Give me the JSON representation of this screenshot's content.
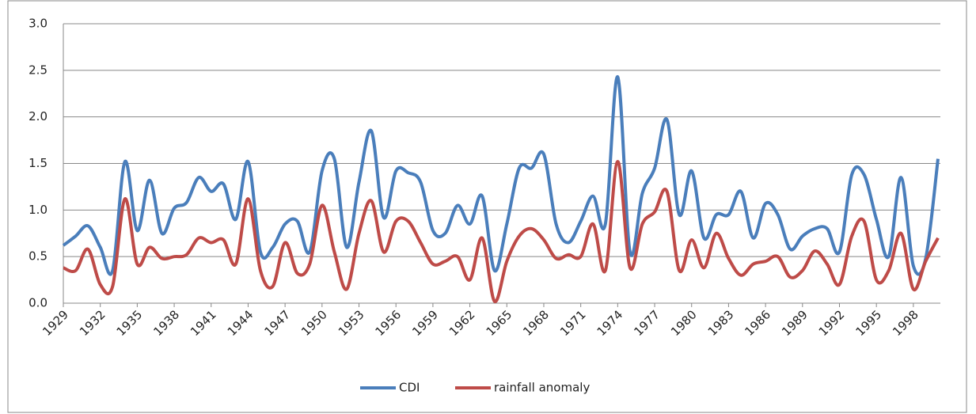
{
  "chart_data": {
    "type": "line",
    "x": [
      1929,
      1930,
      1931,
      1932,
      1933,
      1934,
      1935,
      1936,
      1937,
      1938,
      1939,
      1940,
      1941,
      1942,
      1943,
      1944,
      1945,
      1946,
      1947,
      1948,
      1949,
      1950,
      1951,
      1952,
      1953,
      1954,
      1955,
      1956,
      1957,
      1958,
      1959,
      1960,
      1961,
      1962,
      1963,
      1964,
      1965,
      1966,
      1967,
      1968,
      1969,
      1970,
      1971,
      1972,
      1973,
      1974,
      1975,
      1976,
      1977,
      1978,
      1979,
      1980,
      1981,
      1982,
      1983,
      1984,
      1985,
      1986,
      1987,
      1988,
      1989,
      1990,
      1991,
      1992,
      1993,
      1994,
      1995,
      1996,
      1997,
      1998,
      1999,
      2000
    ],
    "xlim": [
      1929,
      2000
    ],
    "xticks": [
      1929,
      1932,
      1935,
      1938,
      1941,
      1944,
      1947,
      1950,
      1953,
      1956,
      1959,
      1962,
      1965,
      1968,
      1971,
      1974,
      1977,
      1980,
      1983,
      1986,
      1989,
      1992,
      1995,
      1998
    ],
    "ylim": [
      0,
      3
    ],
    "yticks": [
      {
        "value": 0,
        "label": "0.0"
      },
      0.5,
      {
        "value": 1,
        "label": "1.0"
      },
      1.5,
      {
        "value": 2,
        "label": "2.0"
      },
      2.5,
      {
        "value": 3,
        "label": "3.0"
      }
    ],
    "grid": true,
    "legend": "bottom",
    "series": [
      {
        "name": "CDI",
        "color": "#4a7ebb",
        "values": [
          0.62,
          0.72,
          0.83,
          0.6,
          0.35,
          1.52,
          0.78,
          1.32,
          0.75,
          1.02,
          1.08,
          1.35,
          1.2,
          1.28,
          0.9,
          1.52,
          0.55,
          0.6,
          0.85,
          0.88,
          0.55,
          1.42,
          1.55,
          0.6,
          1.3,
          1.85,
          0.92,
          1.42,
          1.4,
          1.3,
          0.78,
          0.75,
          1.05,
          0.85,
          1.15,
          0.35,
          0.85,
          1.45,
          1.45,
          1.6,
          0.85,
          0.65,
          0.88,
          1.15,
          0.85,
          2.43,
          0.55,
          1.18,
          1.45,
          1.97,
          0.95,
          1.42,
          0.7,
          0.95,
          0.95,
          1.2,
          0.7,
          1.07,
          0.95,
          0.58,
          0.72,
          0.8,
          0.8,
          0.55,
          1.38,
          1.38,
          0.9,
          0.5,
          1.35,
          0.4,
          0.48,
          1.55
        ]
      },
      {
        "name": "rainfall anomaly",
        "color": "#be4b48",
        "values": [
          0.38,
          0.35,
          0.58,
          0.2,
          0.18,
          1.12,
          0.42,
          0.6,
          0.48,
          0.5,
          0.52,
          0.7,
          0.65,
          0.68,
          0.42,
          1.12,
          0.35,
          0.18,
          0.65,
          0.32,
          0.42,
          1.05,
          0.55,
          0.15,
          0.75,
          1.1,
          0.55,
          0.88,
          0.88,
          0.65,
          0.42,
          0.45,
          0.5,
          0.25,
          0.7,
          0.02,
          0.45,
          0.72,
          0.8,
          0.68,
          0.48,
          0.52,
          0.5,
          0.85,
          0.35,
          1.52,
          0.38,
          0.85,
          0.98,
          1.2,
          0.35,
          0.68,
          0.38,
          0.75,
          0.48,
          0.3,
          0.42,
          0.45,
          0.5,
          0.28,
          0.35,
          0.56,
          0.42,
          0.2,
          0.72,
          0.88,
          0.25,
          0.35,
          0.75,
          0.15,
          0.45,
          0.7
        ]
      }
    ]
  }
}
